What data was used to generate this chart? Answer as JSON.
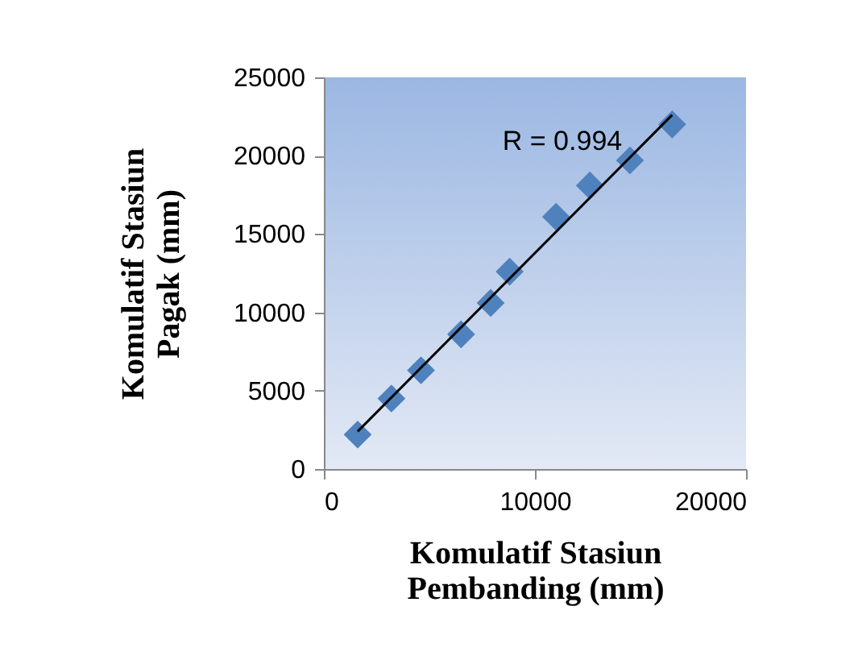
{
  "chart_data": {
    "type": "scatter",
    "xlabel": "Komulatif Stasiun Pembanding (mm)",
    "ylabel": "Komulatif Stasiun Pagak (mm)",
    "x": [
      1600,
      3200,
      4600,
      6500,
      7900,
      8800,
      11000,
      12600,
      14500,
      16500
    ],
    "series": [
      {
        "color": "#4f81bd",
        "marker": "diamond",
        "values": [
          2200,
          4500,
          6300,
          8600,
          10600,
          12600,
          16100,
          18100,
          19700,
          22000
        ]
      },
      {
        "type": "line",
        "color": "#000000",
        "x": [
          1600,
          16500
        ],
        "values": [
          2400,
          22600
        ]
      }
    ],
    "annotations": [
      "R = 0.994"
    ],
    "xlim": [
      0,
      20000
    ],
    "xticks": [
      0,
      10000,
      20000
    ],
    "ylim": [
      0,
      25000
    ],
    "yticks": [
      0,
      5000,
      10000,
      15000,
      20000,
      25000
    ],
    "grid": false
  }
}
